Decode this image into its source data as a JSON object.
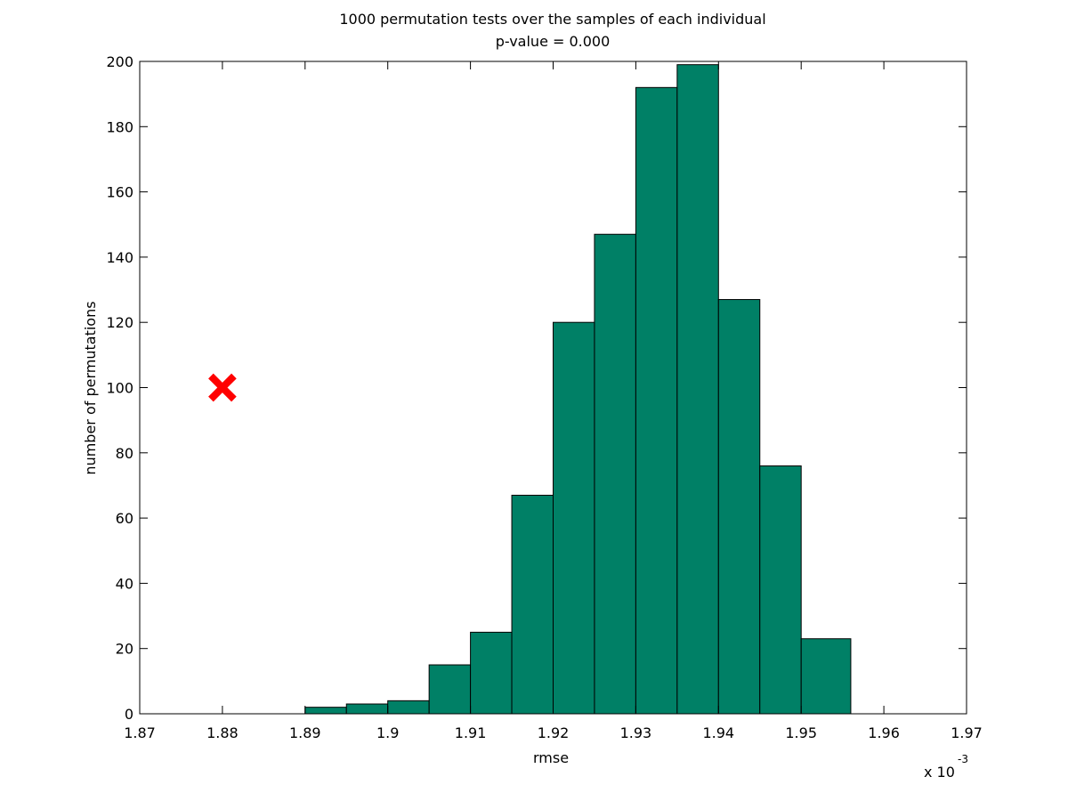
{
  "chart_data": {
    "type": "bar",
    "title": "1000 permutation tests over the samples of each individual",
    "subtitle": "p-value = 0.000",
    "xlabel": "rmse",
    "ylabel": "number of permutations",
    "x_multiplier_label": "x 10",
    "x_multiplier_exponent": "-3",
    "xlim": [
      1.87,
      1.97
    ],
    "ylim": [
      0,
      200
    ],
    "x_ticks": [
      "1.87",
      "1.88",
      "1.89",
      "1.9",
      "1.91",
      "1.92",
      "1.93",
      "1.94",
      "1.95",
      "1.96",
      "1.97"
    ],
    "y_ticks": [
      "0",
      "20",
      "40",
      "60",
      "80",
      "100",
      "120",
      "140",
      "160",
      "180",
      "200"
    ],
    "bar_color": "#008066",
    "bins": [
      {
        "x0": 1.89,
        "x1": 1.895,
        "value": 2
      },
      {
        "x0": 1.895,
        "x1": 1.9,
        "value": 3
      },
      {
        "x0": 1.9,
        "x1": 1.905,
        "value": 4
      },
      {
        "x0": 1.905,
        "x1": 1.91,
        "value": 15
      },
      {
        "x0": 1.91,
        "x1": 1.915,
        "value": 25
      },
      {
        "x0": 1.915,
        "x1": 1.92,
        "value": 67
      },
      {
        "x0": 1.92,
        "x1": 1.925,
        "value": 120
      },
      {
        "x0": 1.925,
        "x1": 1.93,
        "value": 147
      },
      {
        "x0": 1.93,
        "x1": 1.935,
        "value": 192
      },
      {
        "x0": 1.935,
        "x1": 1.94,
        "value": 199
      },
      {
        "x0": 1.94,
        "x1": 1.945,
        "value": 127
      },
      {
        "x0": 1.945,
        "x1": 1.95,
        "value": 76
      },
      {
        "x0": 1.95,
        "x1": 1.956,
        "value": 23
      }
    ],
    "observed_marker": {
      "x": 1.88,
      "y": 100,
      "color": "#ff0000",
      "symbol": "x"
    },
    "grid": false,
    "legend": "none"
  }
}
